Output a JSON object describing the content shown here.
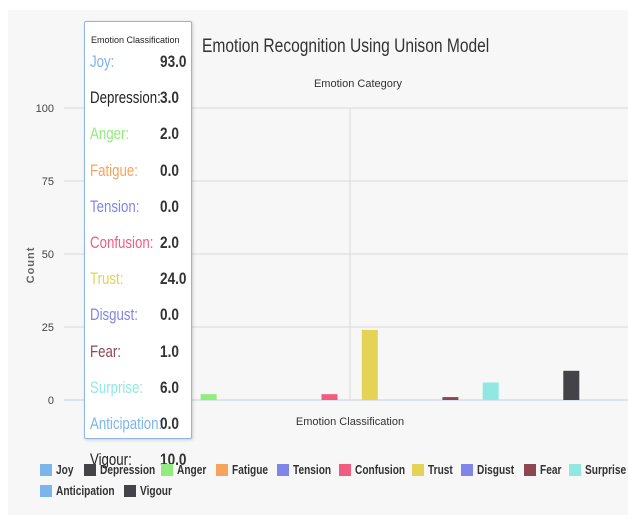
{
  "chart_data": {
    "type": "bar",
    "title": "Emotion Recognition Using Unison Model",
    "subtitle": "Emotion Category",
    "xlabel": "Emotion Classification",
    "ylabel": "Count",
    "ylim": [
      0,
      100
    ],
    "yticks": [
      "0",
      "25",
      "50",
      "75",
      "100"
    ],
    "grid": true,
    "legend_position": "bottom",
    "series": [
      {
        "name": "Joy",
        "value": 93.0,
        "value_label": "93.0",
        "color": "#7cb5ec"
      },
      {
        "name": "Depression",
        "value": 3.0,
        "value_label": "3.0",
        "color": "#434348"
      },
      {
        "name": "Anger",
        "value": 2.0,
        "value_label": "2.0",
        "color": "#90ed7d"
      },
      {
        "name": "Fatigue",
        "value": 0.0,
        "value_label": "0.0",
        "color": "#f7a35c"
      },
      {
        "name": "Tension",
        "value": 0.0,
        "value_label": "0.0",
        "color": "#8085e9"
      },
      {
        "name": "Confusion",
        "value": 2.0,
        "value_label": "2.0",
        "color": "#f15c80"
      },
      {
        "name": "Trust",
        "value": 24.0,
        "value_label": "24.0",
        "color": "#e4d354"
      },
      {
        "name": "Disgust",
        "value": 0.0,
        "value_label": "0.0",
        "color": "#8085e8"
      },
      {
        "name": "Fear",
        "value": 1.0,
        "value_label": "1.0",
        "color": "#8d4653"
      },
      {
        "name": "Surprise",
        "value": 6.0,
        "value_label": "6.0",
        "color": "#91e8e1"
      },
      {
        "name": "Anticipation",
        "value": 0.0,
        "value_label": "0.0",
        "color": "#7cb5ec"
      },
      {
        "name": "Vigour",
        "value": 10.0,
        "value_label": "10.0",
        "color": "#434348"
      }
    ]
  },
  "tooltip": {
    "header": "Emotion Classification"
  }
}
